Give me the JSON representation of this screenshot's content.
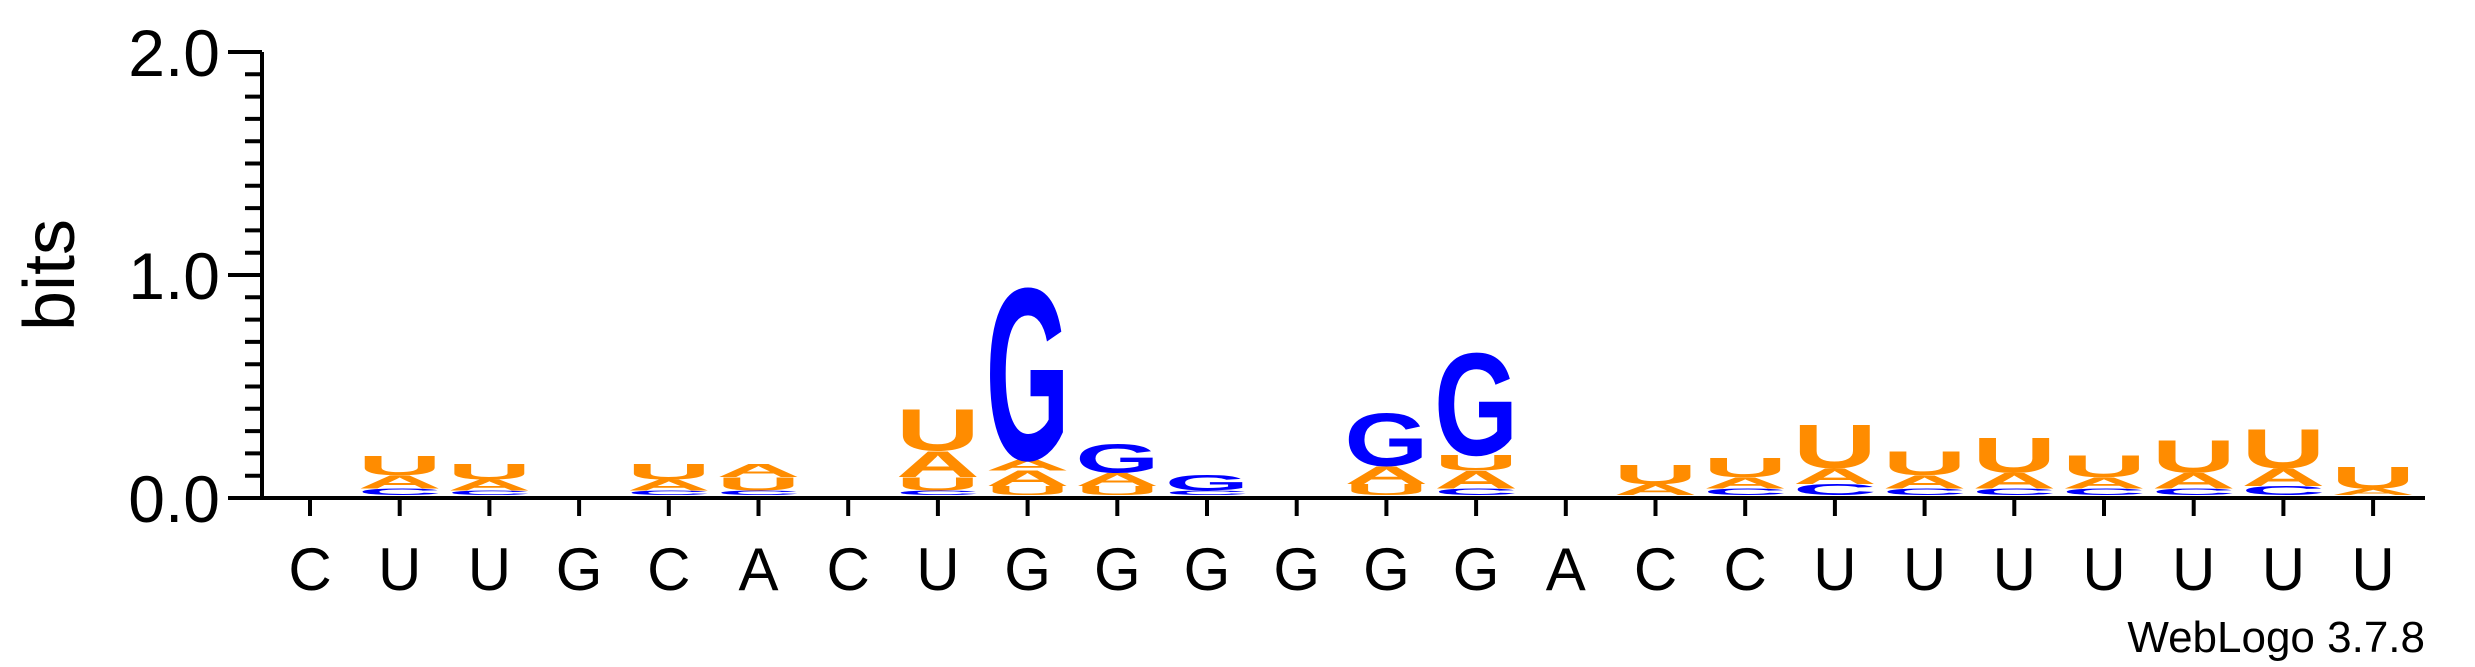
{
  "colors": {
    "A": "#ff8c00",
    "U": "#ff8c00",
    "G": "#0000ff",
    "C": "#0000ff",
    "axis": "#000000"
  },
  "chart_data": {
    "type": "sequence-logo",
    "ylabel": "bits",
    "ylim": [
      0,
      2.0
    ],
    "yticks": [
      "0.0",
      "1.0",
      "2.0"
    ],
    "footer": "WebLogo 3.7.8",
    "positions": [
      {
        "label": "C",
        "stack": []
      },
      {
        "label": "U",
        "stack": [
          {
            "letter": "C",
            "h": 0.03
          },
          {
            "letter": "A",
            "h": 0.06
          },
          {
            "letter": "U",
            "h": 0.09
          }
        ]
      },
      {
        "label": "U",
        "stack": [
          {
            "letter": "C",
            "h": 0.02
          },
          {
            "letter": "A",
            "h": 0.05
          },
          {
            "letter": "U",
            "h": 0.07
          }
        ]
      },
      {
        "label": "G",
        "stack": []
      },
      {
        "label": "C",
        "stack": [
          {
            "letter": "C",
            "h": 0.02
          },
          {
            "letter": "A",
            "h": 0.05
          },
          {
            "letter": "U",
            "h": 0.07
          }
        ]
      },
      {
        "label": "A",
        "stack": [
          {
            "letter": "C",
            "h": 0.02
          },
          {
            "letter": "U",
            "h": 0.06
          },
          {
            "letter": "A",
            "h": 0.06
          }
        ]
      },
      {
        "label": "C",
        "stack": []
      },
      {
        "label": "U",
        "stack": [
          {
            "letter": "C",
            "h": 0.02
          },
          {
            "letter": "U",
            "h": 0.06
          },
          {
            "letter": "A",
            "h": 0.12
          },
          {
            "letter": "U",
            "h": 0.19
          }
        ]
      },
      {
        "label": "G",
        "stack": [
          {
            "letter": "U",
            "h": 0.04
          },
          {
            "letter": "A",
            "h": 0.07
          },
          {
            "letter": "A",
            "h": 0.05
          },
          {
            "letter": "G",
            "h": 0.79
          }
        ]
      },
      {
        "label": "G",
        "stack": [
          {
            "letter": "U",
            "h": 0.04
          },
          {
            "letter": "A",
            "h": 0.06
          },
          {
            "letter": "G",
            "h": 0.13
          }
        ]
      },
      {
        "label": "G",
        "stack": [
          {
            "letter": "C",
            "h": 0.02
          },
          {
            "letter": "G",
            "h": 0.07
          }
        ]
      },
      {
        "label": "G",
        "stack": []
      },
      {
        "label": "G",
        "stack": [
          {
            "letter": "U",
            "h": 0.05
          },
          {
            "letter": "A",
            "h": 0.08
          },
          {
            "letter": "G",
            "h": 0.24
          }
        ]
      },
      {
        "label": "G",
        "stack": [
          {
            "letter": "C",
            "h": 0.03
          },
          {
            "letter": "A",
            "h": 0.08
          },
          {
            "letter": "U",
            "h": 0.07
          },
          {
            "letter": "G",
            "h": 0.47
          }
        ]
      },
      {
        "label": "A",
        "stack": []
      },
      {
        "label": "C",
        "stack": [
          {
            "letter": "A",
            "h": 0.05
          },
          {
            "letter": "U",
            "h": 0.09
          }
        ]
      },
      {
        "label": "C",
        "stack": [
          {
            "letter": "C",
            "h": 0.03
          },
          {
            "letter": "A",
            "h": 0.05
          },
          {
            "letter": "U",
            "h": 0.09
          }
        ]
      },
      {
        "label": "U",
        "stack": [
          {
            "letter": "C",
            "h": 0.05
          },
          {
            "letter": "A",
            "h": 0.07
          },
          {
            "letter": "U",
            "h": 0.2
          }
        ]
      },
      {
        "label": "U",
        "stack": [
          {
            "letter": "C",
            "h": 0.03
          },
          {
            "letter": "A",
            "h": 0.06
          },
          {
            "letter": "U",
            "h": 0.11
          }
        ]
      },
      {
        "label": "U",
        "stack": [
          {
            "letter": "C",
            "h": 0.03
          },
          {
            "letter": "A",
            "h": 0.07
          },
          {
            "letter": "U",
            "h": 0.16
          }
        ]
      },
      {
        "label": "U",
        "stack": [
          {
            "letter": "C",
            "h": 0.03
          },
          {
            "letter": "A",
            "h": 0.05
          },
          {
            "letter": "U",
            "h": 0.1
          }
        ]
      },
      {
        "label": "U",
        "stack": [
          {
            "letter": "C",
            "h": 0.03
          },
          {
            "letter": "A",
            "h": 0.07
          },
          {
            "letter": "U",
            "h": 0.15
          }
        ]
      },
      {
        "label": "U",
        "stack": [
          {
            "letter": "C",
            "h": 0.04
          },
          {
            "letter": "A",
            "h": 0.08
          },
          {
            "letter": "U",
            "h": 0.18
          }
        ]
      },
      {
        "label": "U",
        "stack": [
          {
            "letter": "A",
            "h": 0.03
          },
          {
            "letter": "U",
            "h": 0.1
          }
        ]
      }
    ]
  }
}
